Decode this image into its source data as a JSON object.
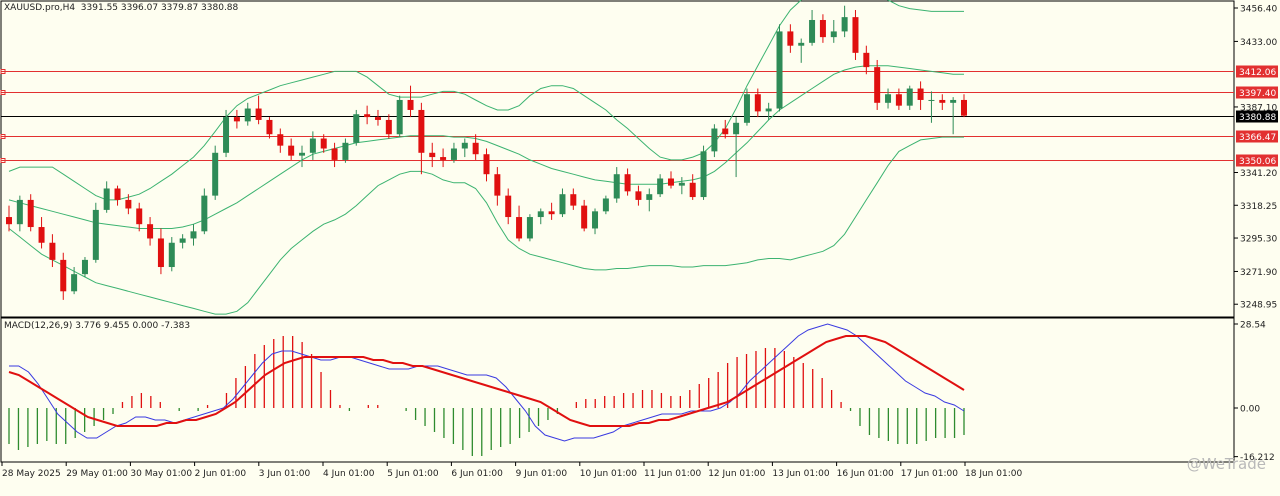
{
  "symbol_header": "XAUUSD.pro,H4  3391.55 3396.07 3379.87 3380.88",
  "macd_header": "MACD(12,26,9) 3.776 9.455 0.000 -7.383",
  "watermark": "@WeTrade",
  "colors": {
    "background": "#fefef0",
    "bull_candle": "#2e8b57",
    "bear_candle": "#e01010",
    "bollinger": "#3cb371",
    "horizontal_lines": "#e23030",
    "macd_signal": "#e01010",
    "macd_main": "#3a3ae0",
    "hist_positive": "#e01010",
    "hist_negative": "#2e8b2e"
  },
  "price_axis": {
    "ticks": [
      "3456.40",
      "3433.00",
      "3387.10",
      "3341.20",
      "3318.25",
      "3295.30",
      "3271.90",
      "3248.95"
    ],
    "ylim": [
      3240,
      3462
    ],
    "current_price": "3380.88"
  },
  "horizontal_levels": [
    {
      "label": "3412.06",
      "value": 3412.06
    },
    {
      "label": "3397.40",
      "value": 3397.4
    },
    {
      "label": "3366.47",
      "value": 3366.47
    },
    {
      "label": "3350.06",
      "value": 3350.06
    }
  ],
  "macd_axis": {
    "ticks": [
      "28.54",
      "0.00",
      "-16.212"
    ],
    "ylim": [
      -18,
      30
    ]
  },
  "time_axis": [
    "28 May 2025",
    "29 May 01:00",
    "30 May 01:00",
    "2 Jun 01:00",
    "3 Jun 01:00",
    "4 Jun 01:00",
    "5 Jun 01:00",
    "6 Jun 01:00",
    "9 Jun 01:00",
    "10 Jun 01:00",
    "11 Jun 01:00",
    "12 Jun 01:00",
    "13 Jun 01:00",
    "16 Jun 01:00",
    "17 Jun 01:00",
    "18 Jun 01:00"
  ],
  "chart_data": [
    {
      "type": "candlestick",
      "title": "XAUUSD.pro,H4",
      "candles": [
        [
          3310,
          3318,
          3300,
          3305
        ],
        [
          3305,
          3325,
          3300,
          3322
        ],
        [
          3322,
          3326,
          3300,
          3303
        ],
        [
          3303,
          3310,
          3288,
          3292
        ],
        [
          3292,
          3298,
          3275,
          3280
        ],
        [
          3280,
          3285,
          3252,
          3258
        ],
        [
          3258,
          3275,
          3256,
          3270
        ],
        [
          3270,
          3282,
          3268,
          3280
        ],
        [
          3280,
          3320,
          3278,
          3315
        ],
        [
          3315,
          3335,
          3313,
          3330
        ],
        [
          3330,
          3332,
          3318,
          3322
        ],
        [
          3322,
          3326,
          3312,
          3316
        ],
        [
          3316,
          3320,
          3300,
          3305
        ],
        [
          3305,
          3310,
          3290,
          3295
        ],
        [
          3295,
          3302,
          3270,
          3275
        ],
        [
          3275,
          3296,
          3272,
          3292
        ],
        [
          3292,
          3298,
          3288,
          3295
        ],
        [
          3295,
          3305,
          3290,
          3300
        ],
        [
          3300,
          3330,
          3298,
          3325
        ],
        [
          3325,
          3360,
          3322,
          3355
        ],
        [
          3355,
          3385,
          3352,
          3380
        ],
        [
          3380,
          3385,
          3372,
          3377
        ],
        [
          3377,
          3390,
          3374,
          3386
        ],
        [
          3386,
          3395,
          3375,
          3378
        ],
        [
          3378,
          3380,
          3365,
          3368
        ],
        [
          3368,
          3372,
          3355,
          3360
        ],
        [
          3360,
          3365,
          3350,
          3353
        ],
        [
          3353,
          3360,
          3345,
          3355
        ],
        [
          3355,
          3370,
          3350,
          3365
        ],
        [
          3365,
          3368,
          3355,
          3358
        ],
        [
          3358,
          3362,
          3345,
          3350
        ],
        [
          3350,
          3365,
          3348,
          3362
        ],
        [
          3362,
          3385,
          3360,
          3382
        ],
        [
          3382,
          3388,
          3375,
          3380
        ],
        [
          3380,
          3385,
          3374,
          3378
        ],
        [
          3378,
          3382,
          3365,
          3368
        ],
        [
          3368,
          3395,
          3366,
          3392
        ],
        [
          3392,
          3402,
          3380,
          3385
        ],
        [
          3385,
          3390,
          3340,
          3355
        ],
        [
          3355,
          3362,
          3345,
          3352
        ],
        [
          3352,
          3358,
          3345,
          3350
        ],
        [
          3350,
          3362,
          3348,
          3358
        ],
        [
          3358,
          3365,
          3352,
          3362
        ],
        [
          3362,
          3368,
          3350,
          3354
        ],
        [
          3354,
          3358,
          3335,
          3340
        ],
        [
          3340,
          3345,
          3318,
          3325
        ],
        [
          3325,
          3330,
          3305,
          3310
        ],
        [
          3310,
          3318,
          3293,
          3295
        ],
        [
          3295,
          3312,
          3293,
          3310
        ],
        [
          3310,
          3316,
          3305,
          3314
        ],
        [
          3314,
          3320,
          3308,
          3312
        ],
        [
          3312,
          3330,
          3310,
          3326
        ],
        [
          3326,
          3330,
          3315,
          3318
        ],
        [
          3318,
          3322,
          3300,
          3302
        ],
        [
          3302,
          3316,
          3298,
          3314
        ],
        [
          3314,
          3325,
          3312,
          3323
        ],
        [
          3323,
          3345,
          3320,
          3340
        ],
        [
          3340,
          3344,
          3325,
          3328
        ],
        [
          3328,
          3332,
          3318,
          3322
        ],
        [
          3322,
          3330,
          3314,
          3326
        ],
        [
          3326,
          3340,
          3324,
          3337
        ],
        [
          3337,
          3342,
          3330,
          3332
        ],
        [
          3332,
          3338,
          3326,
          3334
        ],
        [
          3334,
          3340,
          3322,
          3324
        ],
        [
          3324,
          3360,
          3322,
          3356
        ],
        [
          3356,
          3375,
          3352,
          3372
        ],
        [
          3372,
          3378,
          3365,
          3368
        ],
        [
          3368,
          3380,
          3338,
          3376
        ],
        [
          3376,
          3400,
          3374,
          3396
        ],
        [
          3396,
          3400,
          3380,
          3384
        ],
        [
          3384,
          3390,
          3378,
          3386
        ],
        [
          3386,
          3445,
          3384,
          3440
        ],
        [
          3440,
          3445,
          3425,
          3430
        ],
        [
          3430,
          3435,
          3418,
          3432
        ],
        [
          3432,
          3455,
          3430,
          3448
        ],
        [
          3448,
          3452,
          3432,
          3436
        ],
        [
          3436,
          3448,
          3432,
          3440
        ],
        [
          3440,
          3458,
          3436,
          3450
        ],
        [
          3450,
          3455,
          3420,
          3425
        ],
        [
          3425,
          3430,
          3410,
          3415
        ],
        [
          3415,
          3420,
          3385,
          3390
        ],
        [
          3390,
          3400,
          3386,
          3396
        ],
        [
          3396,
          3400,
          3385,
          3388
        ],
        [
          3388,
          3402,
          3385,
          3400
        ],
        [
          3400,
          3405,
          3385,
          3392
        ],
        [
          3392,
          3398,
          3376,
          3392
        ],
        [
          3392,
          3396,
          3385,
          3390
        ],
        [
          3390,
          3394,
          3368,
          3392
        ],
        [
          3392,
          3396,
          3380,
          3381
        ]
      ],
      "bollinger_upper": [
        3342,
        3345,
        3345,
        3345,
        3345,
        3340,
        3335,
        3330,
        3325,
        3322,
        3322,
        3324,
        3326,
        3330,
        3335,
        3340,
        3346,
        3352,
        3360,
        3370,
        3380,
        3388,
        3393,
        3396,
        3399,
        3402,
        3404,
        3406,
        3408,
        3410,
        3412,
        3412,
        3412,
        3408,
        3402,
        3396,
        3394,
        3394,
        3394,
        3396,
        3398,
        3398,
        3396,
        3392,
        3388,
        3385,
        3385,
        3388,
        3395,
        3400,
        3402,
        3402,
        3400,
        3395,
        3390,
        3385,
        3378,
        3372,
        3365,
        3358,
        3352,
        3350,
        3350,
        3352,
        3355,
        3362,
        3372,
        3386,
        3402,
        3416,
        3430,
        3444,
        3455,
        3462,
        3468,
        3472,
        3474,
        3474,
        3472,
        3470,
        3466,
        3462,
        3458,
        3456,
        3455,
        3454,
        3454,
        3454,
        3454
      ],
      "bollinger_middle": [
        3322,
        3320,
        3318,
        3316,
        3314,
        3312,
        3310,
        3308,
        3306,
        3305,
        3304,
        3303,
        3302,
        3302,
        3302,
        3302,
        3303,
        3305,
        3308,
        3312,
        3316,
        3320,
        3325,
        3330,
        3335,
        3340,
        3345,
        3350,
        3354,
        3356,
        3358,
        3360,
        3362,
        3363,
        3364,
        3365,
        3366,
        3367,
        3367,
        3367,
        3367,
        3366,
        3366,
        3365,
        3363,
        3360,
        3357,
        3354,
        3350,
        3347,
        3344,
        3342,
        3340,
        3338,
        3336,
        3335,
        3334,
        3333,
        3333,
        3333,
        3333,
        3334,
        3335,
        3336,
        3338,
        3342,
        3348,
        3355,
        3362,
        3370,
        3378,
        3385,
        3390,
        3395,
        3400,
        3405,
        3410,
        3413,
        3415,
        3416,
        3416,
        3416,
        3415,
        3414,
        3413,
        3412,
        3411,
        3410,
        3410
      ],
      "bollinger_lower": [
        3302,
        3296,
        3290,
        3284,
        3280,
        3276,
        3272,
        3268,
        3264,
        3262,
        3260,
        3258,
        3256,
        3254,
        3252,
        3250,
        3248,
        3246,
        3244,
        3242,
        3242,
        3244,
        3250,
        3260,
        3270,
        3280,
        3288,
        3294,
        3300,
        3305,
        3308,
        3312,
        3318,
        3325,
        3332,
        3336,
        3340,
        3342,
        3342,
        3340,
        3336,
        3334,
        3334,
        3330,
        3320,
        3306,
        3294,
        3288,
        3284,
        3282,
        3280,
        3278,
        3276,
        3274,
        3273,
        3273,
        3274,
        3274,
        3275,
        3276,
        3276,
        3276,
        3275,
        3275,
        3276,
        3276,
        3276,
        3277,
        3278,
        3280,
        3281,
        3281,
        3280,
        3282,
        3284,
        3286,
        3290,
        3298,
        3310,
        3322,
        3334,
        3346,
        3356,
        3360,
        3364,
        3365,
        3366,
        3366,
        3366
      ]
    },
    {
      "type": "macd",
      "title": "MACD(12,26,9)",
      "histogram": [
        -12,
        -14,
        -13,
        -12,
        -11,
        -12,
        -12,
        -10,
        -8,
        -6,
        -4,
        -2,
        2,
        4,
        5,
        4,
        2,
        0,
        -1,
        0,
        -1,
        1,
        0,
        5,
        10,
        14,
        18,
        21,
        23,
        24,
        24,
        22,
        18,
        12,
        6,
        1,
        -1,
        0,
        1,
        1,
        0,
        0,
        -1,
        -4,
        -6,
        -8,
        -10,
        -12,
        -14,
        -16,
        -16,
        -14,
        -13,
        -12,
        -10,
        -8,
        -6,
        -4,
        -2,
        0,
        2,
        3,
        3,
        4,
        4,
        5,
        5,
        6,
        6,
        5,
        4,
        4,
        6,
        8,
        10,
        12,
        15,
        17,
        18,
        19,
        20,
        20,
        19,
        17,
        15,
        13,
        10,
        6,
        2,
        -1,
        -6,
        -9,
        -10,
        -11,
        -12,
        -12,
        -12,
        -11,
        -10,
        -10,
        -10,
        -9
      ],
      "main_line": [
        14,
        14,
        12,
        8,
        3,
        -2,
        -5,
        -8,
        -10,
        -10,
        -8,
        -6,
        -5,
        -3,
        -3,
        -4,
        -4,
        -5,
        -4,
        -3,
        -2,
        -1,
        0,
        3,
        7,
        11,
        15,
        18,
        19,
        19,
        18,
        17,
        16,
        16,
        17,
        17,
        16,
        15,
        14,
        13,
        13,
        13,
        14,
        14,
        14,
        13,
        12,
        11,
        11,
        11,
        10,
        7,
        3,
        -1,
        -6,
        -9,
        -10,
        -11,
        -10,
        -10,
        -10,
        -9,
        -8,
        -6,
        -5,
        -4,
        -3,
        -2,
        -2,
        -2,
        -1,
        -1,
        -1,
        0,
        2,
        5,
        9,
        12,
        15,
        18,
        21,
        24,
        26,
        27,
        28,
        27,
        26,
        24,
        21,
        18,
        15,
        12,
        9,
        7,
        5,
        4,
        2,
        1,
        -1
      ],
      "signal_line": [
        12,
        11,
        9,
        7,
        5,
        3,
        1,
        -1,
        -3,
        -4,
        -5,
        -6,
        -6,
        -6,
        -6,
        -6,
        -5,
        -5,
        -4,
        -4,
        -3,
        -2,
        0,
        2,
        5,
        8,
        11,
        13,
        15,
        16,
        17,
        17,
        17,
        17,
        17,
        17,
        17,
        16,
        16,
        15,
        15,
        14,
        14,
        13,
        12,
        11,
        10,
        9,
        8,
        7,
        6,
        5,
        4,
        3,
        2,
        0,
        -2,
        -4,
        -5,
        -6,
        -6,
        -6,
        -6,
        -6,
        -5,
        -5,
        -4,
        -4,
        -3,
        -2,
        -1,
        0,
        1,
        2,
        4,
        6,
        8,
        10,
        12,
        14,
        16,
        18,
        20,
        22,
        23,
        24,
        24,
        24,
        23,
        22,
        20,
        18,
        16,
        14,
        12,
        10,
        8,
        6
      ]
    }
  ]
}
